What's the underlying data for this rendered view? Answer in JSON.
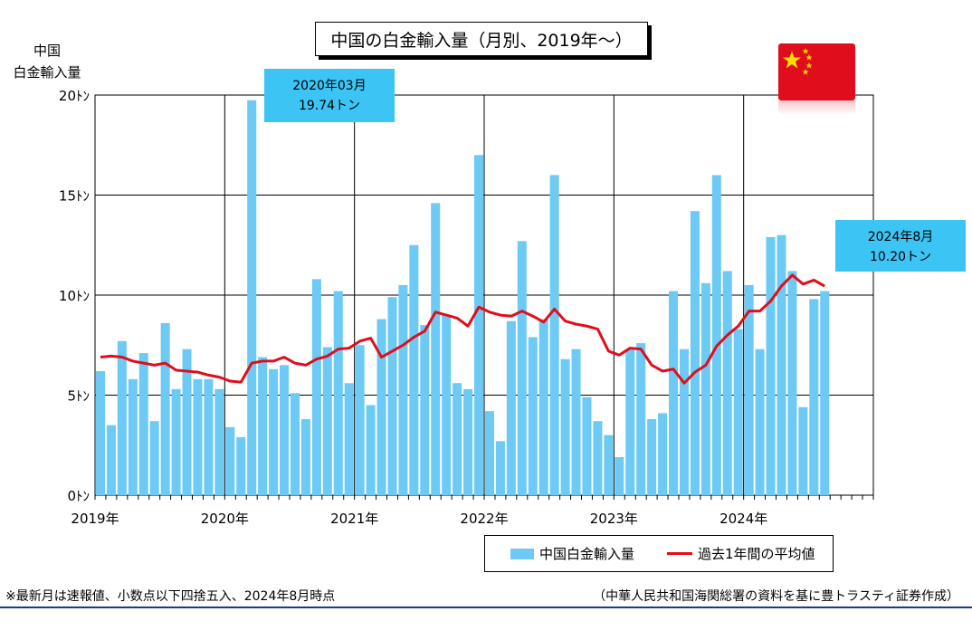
{
  "title": "中国の白金輸入量（月別、2019年～）",
  "ylabel_lines": [
    "中国",
    "白金輸入量"
  ],
  "callouts": [
    {
      "line1": "2020年03月",
      "line2": "19.74トン"
    },
    {
      "line1": "2024年8月",
      "line2": "10.20トン"
    }
  ],
  "legend": {
    "bar_label": "中国白金輸入量",
    "line_label": "過去1年間の平均値"
  },
  "footnote": "※最新月は速報値、小数点以下四捨五入、2024年8月時点",
  "source": "（中華人民共和国海関総署の資料を基に豊トラスティ証券作成）",
  "colors": {
    "bar": "#6ccaf5",
    "line": "#e00d1c",
    "callout": "#3cc4f5",
    "flag": "#e00d1c",
    "flag_star": "#ffde00"
  },
  "icons": {
    "flag": "china-flag-icon"
  },
  "chart_data": {
    "type": "bar",
    "x_start": "2019-01",
    "x_end": "2024-12",
    "ylim": [
      0,
      20
    ],
    "yticks": [
      "0ﾄﾝ",
      "5ﾄﾝ",
      "10ﾄﾝ",
      "15ﾄﾝ",
      "20ﾄﾝ"
    ],
    "xticks": [
      "2019年",
      "2020年",
      "2021年",
      "2022年",
      "2023年",
      "2024年"
    ],
    "grid": true,
    "series": [
      {
        "name": "中国白金輸入量",
        "type": "bar",
        "values": [
          6.2,
          3.5,
          7.7,
          5.8,
          7.1,
          3.7,
          8.6,
          5.3,
          7.3,
          5.8,
          5.8,
          5.3,
          3.4,
          2.9,
          19.74,
          6.9,
          6.3,
          6.5,
          5.1,
          3.8,
          10.8,
          7.4,
          10.2,
          5.6,
          7.5,
          4.5,
          8.8,
          9.9,
          10.5,
          12.5,
          8.5,
          14.6,
          9.0,
          5.6,
          5.3,
          17.0,
          4.2,
          2.7,
          8.7,
          12.7,
          7.9,
          8.8,
          16.0,
          6.8,
          7.3,
          4.9,
          3.7,
          3.0,
          1.9,
          7.3,
          7.6,
          3.8,
          4.1,
          10.2,
          7.3,
          14.2,
          10.6,
          16.0,
          11.2,
          8.3,
          10.5,
          7.3,
          12.9,
          13.0,
          11.2,
          4.4,
          9.8,
          10.2
        ]
      },
      {
        "name": "過去1年間の平均値",
        "type": "line",
        "values": [
          6.9,
          6.95,
          6.9,
          6.7,
          6.6,
          6.5,
          6.6,
          6.25,
          6.2,
          6.15,
          6.0,
          5.9,
          5.7,
          5.65,
          6.6,
          6.7,
          6.7,
          6.9,
          6.6,
          6.5,
          6.8,
          6.95,
          7.3,
          7.35,
          7.7,
          7.85,
          6.9,
          7.2,
          7.5,
          7.9,
          8.2,
          9.15,
          9.0,
          8.85,
          8.45,
          9.4,
          9.15,
          9.0,
          8.95,
          9.2,
          8.95,
          8.65,
          9.3,
          8.7,
          8.55,
          8.45,
          8.3,
          7.2,
          7.0,
          7.35,
          7.3,
          6.5,
          6.2,
          6.3,
          5.6,
          6.15,
          6.5,
          7.45,
          8.0,
          8.45,
          9.2,
          9.2,
          9.7,
          10.45,
          11.0,
          10.55,
          10.75,
          10.45
        ]
      }
    ]
  }
}
